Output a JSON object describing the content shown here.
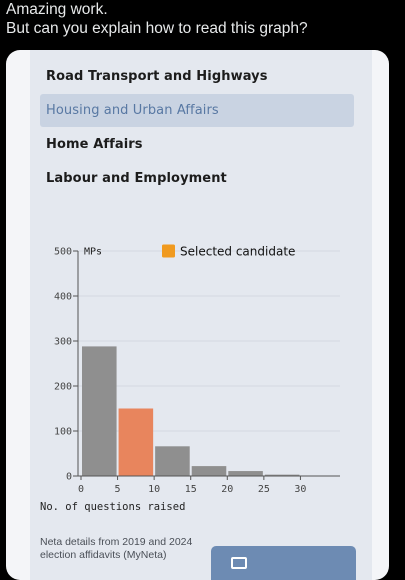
{
  "tweet": {
    "line1": "Amazing work.",
    "line2": "But can you explain how to read this graph?"
  },
  "menu": {
    "items": [
      {
        "label": "Road Transport and Highways",
        "selected": false
      },
      {
        "label": "Housing and Urban Affairs",
        "selected": true
      },
      {
        "label": "Home Affairs",
        "selected": false
      },
      {
        "label": "Labour and Employment",
        "selected": false
      }
    ]
  },
  "chart_data": {
    "type": "bar",
    "xlabel": "No. of questions raised",
    "ylabel": "MPs",
    "legend": "Selected candidate",
    "legend_color": "#f09a1f",
    "bar_color": "#8f8f8f",
    "selected_color": "#e8855d",
    "x_ticks": [
      "0",
      "5",
      "10",
      "15",
      "20",
      "25",
      "30"
    ],
    "y_ticks": [
      "0",
      "100",
      "200",
      "300",
      "400",
      "500"
    ],
    "ylim": [
      0,
      500
    ],
    "bins": [
      {
        "start": 0,
        "end": 5,
        "value": 288,
        "selected": false
      },
      {
        "start": 5,
        "end": 10,
        "value": 150,
        "selected": true
      },
      {
        "start": 10,
        "end": 15,
        "value": 66,
        "selected": false
      },
      {
        "start": 15,
        "end": 20,
        "value": 22,
        "selected": false
      },
      {
        "start": 20,
        "end": 25,
        "value": 11,
        "selected": false
      },
      {
        "start": 25,
        "end": 30,
        "value": 3,
        "selected": false
      },
      {
        "start": 30,
        "end": 35,
        "value": 1,
        "selected": false
      }
    ],
    "grid": true
  },
  "footer": {
    "note_line1": "Neta details from 2019 and 2024",
    "note_line2": "election affidavits (MyNeta)"
  }
}
